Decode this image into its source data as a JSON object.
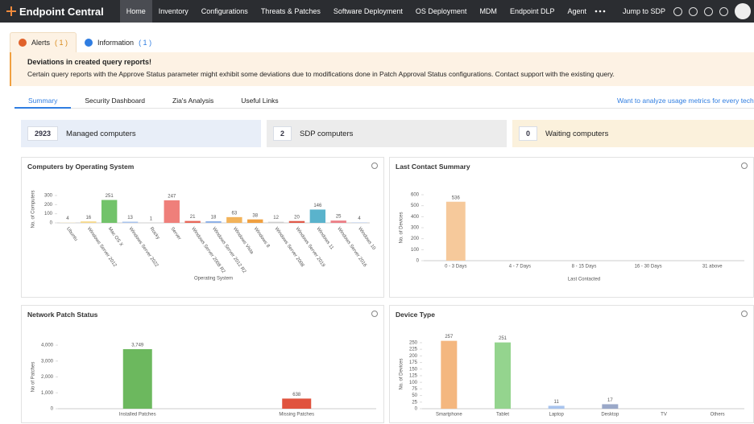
{
  "nav": {
    "brand": "Endpoint Central",
    "items": [
      "Home",
      "Inventory",
      "Configurations",
      "Threats & Patches",
      "Software Deployment",
      "OS Deployment",
      "MDM",
      "Endpoint DLP",
      "Agent"
    ],
    "jump": "Jump to SDP"
  },
  "alerts": {
    "tabs": [
      {
        "label": "Alerts",
        "count": "( 1 )"
      },
      {
        "label": "Information",
        "count": "( 1 )"
      }
    ],
    "banner": {
      "title": "Deviations in created query reports!",
      "text": "Certain query reports with the Approve Status parameter might exhibit some deviations due to modifications done in Patch Approval Status configurations. Contact support with the existing query."
    }
  },
  "subtabs": [
    "Summary",
    "Security Dashboard",
    "Zia's Analysis",
    "Useful Links"
  ],
  "usage_link": "Want to analyze usage metrics for every technici",
  "stats": [
    {
      "value": "2923",
      "label": "Managed computers"
    },
    {
      "value": "2",
      "label": "SDP computers"
    },
    {
      "value": "0",
      "label": "Waiting computers"
    }
  ],
  "panels": [
    {
      "title": "Computers by Operating System",
      "chart": {
        "type": "bar",
        "categories": [
          "Ubuntu",
          "Windows Server 2012",
          "Mac OS X",
          "Windows Server 2022",
          "Rocky",
          "Server",
          "Windows Server 2008 R2",
          "Windows Server 2012 R2",
          "Windows Vista",
          "Windows 8",
          "Windows Server 2008",
          "Windows Server 2019",
          "Windows 11",
          "Windows Server 2016",
          "Windows 10"
        ],
        "values": [
          4,
          16,
          251,
          13,
          1,
          247,
          21,
          18,
          63,
          38,
          12,
          20,
          146,
          25,
          4
        ],
        "colors": [
          "#f3e3c3",
          "#f6d98a",
          "#72c36a",
          "#a9c4ee",
          "#d8d8d8",
          "#ef7f7a",
          "#e8685a",
          "#8fb2e8",
          "#f2b35a",
          "#f0a040",
          "#cfcfcf",
          "#e05a4a",
          "#5ab3cc",
          "#ec7f86",
          "#a9c4ee"
        ],
        "ylim": [
          0,
          300
        ],
        "yticks": [
          0,
          100,
          200,
          300
        ],
        "y_label": "No. of Computers",
        "x_label": "Operating System"
      }
    },
    {
      "title": "Last Contact Summary",
      "chart": {
        "type": "bar",
        "categories": [
          "0 - 3 Days",
          "4 - 7 Days",
          "8 - 15 Days",
          "16 - 30 Days",
          "31 above"
        ],
        "values": [
          536,
          0,
          0,
          0,
          0
        ],
        "colors": [
          "#f6c99b",
          "#f6c99b",
          "#f6c99b",
          "#f6c99b",
          "#f6c99b"
        ],
        "ylim": [
          0,
          600
        ],
        "yticks": [
          0,
          100,
          200,
          300,
          400,
          500,
          600
        ],
        "y_label": "No. of Devices",
        "x_label": "Last Contacted"
      }
    },
    {
      "title": "Network Patch Status",
      "chart": {
        "type": "bar",
        "categories": [
          "Installed Patches",
          "Missing Patches"
        ],
        "values": [
          3749,
          638
        ],
        "value_labels": [
          "3,749",
          "638"
        ],
        "colors": [
          "#6cb85e",
          "#e0533e"
        ],
        "ylim": [
          0,
          4000
        ],
        "yticks": [
          0,
          {
            "value": 1000,
            "label": "1,000"
          },
          {
            "value": 2000,
            "label": "2,000"
          },
          {
            "value": 3000,
            "label": "3,000"
          },
          {
            "value": 4000,
            "label": "4,000"
          }
        ],
        "y_label": "No of Patches"
      }
    },
    {
      "title": "Device Type",
      "chart": {
        "type": "bar",
        "categories": [
          "Smartphone",
          "Tablet",
          "Laptop",
          "Desktop",
          "TV",
          "Others"
        ],
        "values": [
          257,
          251,
          11,
          17,
          0,
          0
        ],
        "colors": [
          "#f4b77f",
          "#94d48e",
          "#a9c4ee",
          "#9aa8c8",
          "#ccc",
          "#ccc"
        ],
        "ylim": [
          0,
          262
        ],
        "yticks": [
          0,
          25,
          50,
          75,
          100,
          125,
          150,
          175,
          200,
          225,
          250
        ],
        "y_label": "No. of Devices"
      }
    }
  ]
}
